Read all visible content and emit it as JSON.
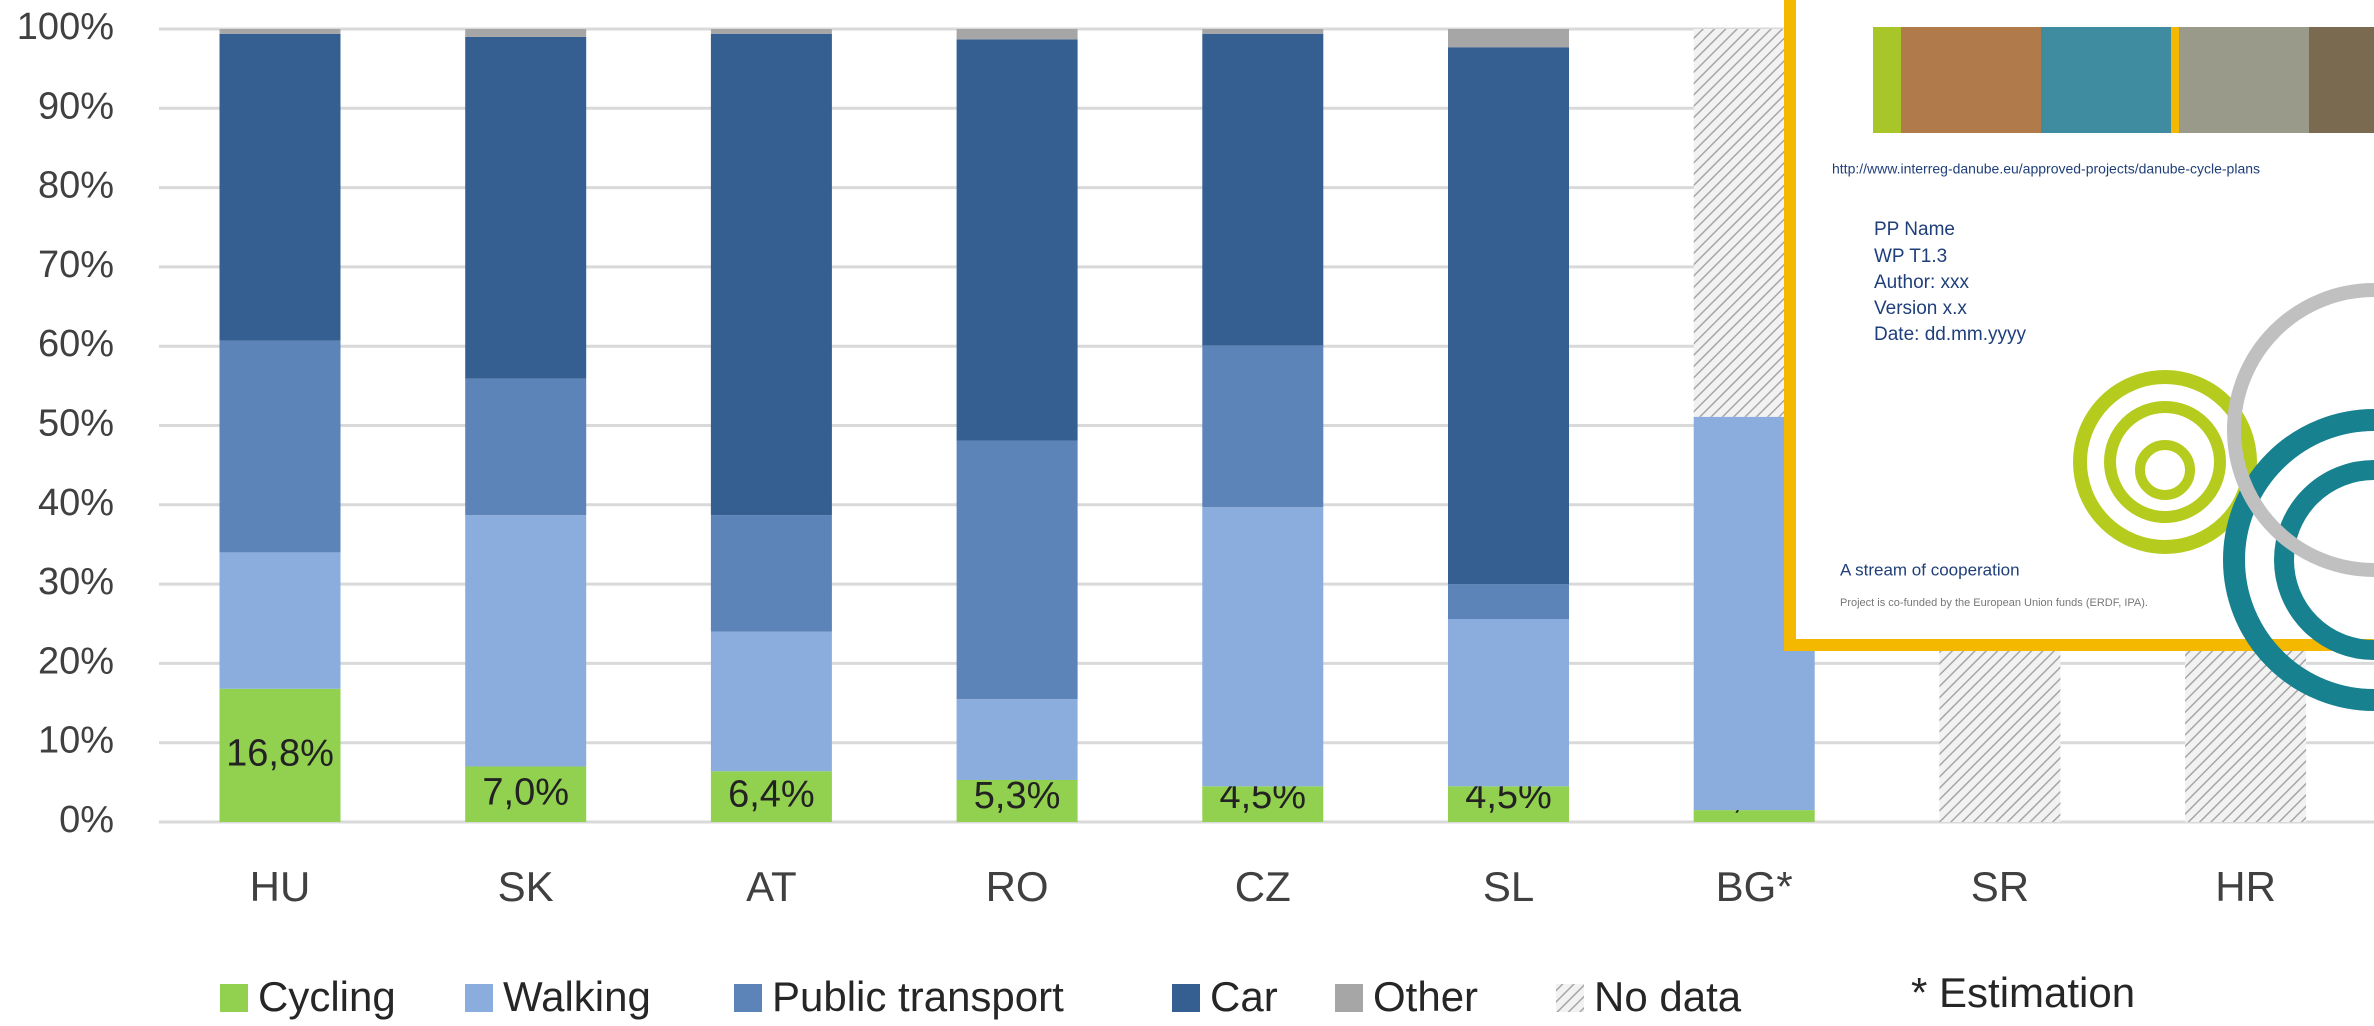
{
  "chart_data": {
    "type": "stacked_bar",
    "categories": [
      "HU",
      "SK",
      "AT",
      "RO",
      "CZ",
      "SL",
      "BG*",
      "SR",
      "HR"
    ],
    "series": [
      {
        "name": "Cycling",
        "color": "#92d050",
        "values": [
          16.8,
          7.0,
          6.4,
          5.3,
          4.5,
          4.5,
          1.5,
          null,
          null
        ],
        "value_labels": [
          "16,8%",
          "7,0%",
          "6,4%",
          "5,3%",
          "4,5%",
          "4,5%",
          "1,5%",
          null,
          null
        ]
      },
      {
        "name": "Walking",
        "color": "#8aadde",
        "values": [
          17.2,
          31.7,
          17.6,
          10.2,
          35.2,
          21.1,
          49.6,
          null,
          null
        ]
      },
      {
        "name": "Public transport",
        "color": "#5c84b8",
        "values": [
          26.7,
          17.2,
          14.7,
          32.6,
          20.4,
          4.4,
          null,
          null,
          null
        ]
      },
      {
        "name": "Car",
        "color": "#355f91",
        "values": [
          38.7,
          43.1,
          60.7,
          50.6,
          39.3,
          67.7,
          null,
          null,
          null
        ]
      },
      {
        "name": "Other",
        "color": "#a6a6a6",
        "values": [
          0.6,
          1.0,
          0.6,
          1.3,
          0.6,
          2.3,
          null,
          null,
          null
        ]
      },
      {
        "name": "No data",
        "color": "#bfbfbf",
        "hatch": true,
        "values": [
          null,
          null,
          null,
          null,
          null,
          null,
          48.9,
          100,
          100
        ]
      }
    ],
    "ylim": [
      0,
      100
    ],
    "yticks": [
      {
        "value": 0,
        "label": "0%"
      },
      {
        "value": 10,
        "label": "10%"
      },
      {
        "value": 20,
        "label": "20%"
      },
      {
        "value": 30,
        "label": "30%"
      },
      {
        "value": 40,
        "label": "40%"
      },
      {
        "value": 50,
        "label": "50%"
      },
      {
        "value": 60,
        "label": "60%"
      },
      {
        "value": 70,
        "label": "70%"
      },
      {
        "value": 80,
        "label": "80%"
      },
      {
        "value": 90,
        "label": "90%"
      },
      {
        "value": 100,
        "label": "100%"
      }
    ],
    "grid": true,
    "annotation": "* Estimation"
  },
  "overlay": {
    "url": "http://www.interreg-danube.eu/approved-projects/danube-cycle-plans",
    "lines": [
      "PP Name",
      "WP T1.3",
      "Author: xxx",
      "Version x.x",
      "Date: dd.mm.yyyy"
    ],
    "slogan": "A stream of cooperation",
    "funding": "Project is co-funded by the European Union funds (ERDF, IPA)."
  }
}
